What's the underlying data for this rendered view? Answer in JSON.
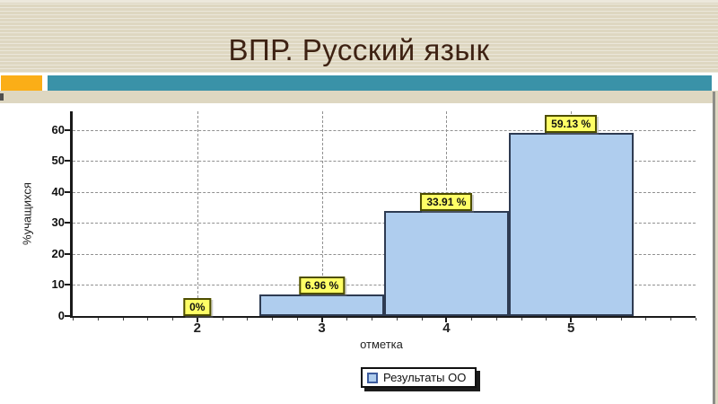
{
  "slide": {
    "title": "ВПР. Русский язык"
  },
  "colors": {
    "background": "#DED7C1",
    "title": "#3E2213",
    "accent_orange": "#FBAE17",
    "accent_teal": "#3A92A8",
    "bar_fill": "#AFCDEE",
    "bar_border": "#2E3B52",
    "label_bg": "#FFFF66",
    "label_border": "#4D4D00",
    "grid": "#909090",
    "axis": "#1A1A1A",
    "legend_swatch_border": "#3D5C9E"
  },
  "chart_data": {
    "type": "bar",
    "title": "",
    "categories": [
      "2",
      "3",
      "4",
      "5"
    ],
    "values": [
      0,
      6.96,
      33.91,
      59.13
    ],
    "value_labels": [
      "0%",
      "6.96 %",
      "33.91 %",
      "59.13 %"
    ],
    "xlabel": "отметка",
    "ylabel": "%учащихся",
    "yticks": [
      0,
      10,
      20,
      30,
      40,
      50,
      60
    ],
    "ylim": [
      0,
      66
    ],
    "grid": "dashed",
    "legend": {
      "position": "bottom-center",
      "entries": [
        {
          "label": "Результаты ОО",
          "swatch_color": "#AFCDEE"
        }
      ]
    }
  }
}
